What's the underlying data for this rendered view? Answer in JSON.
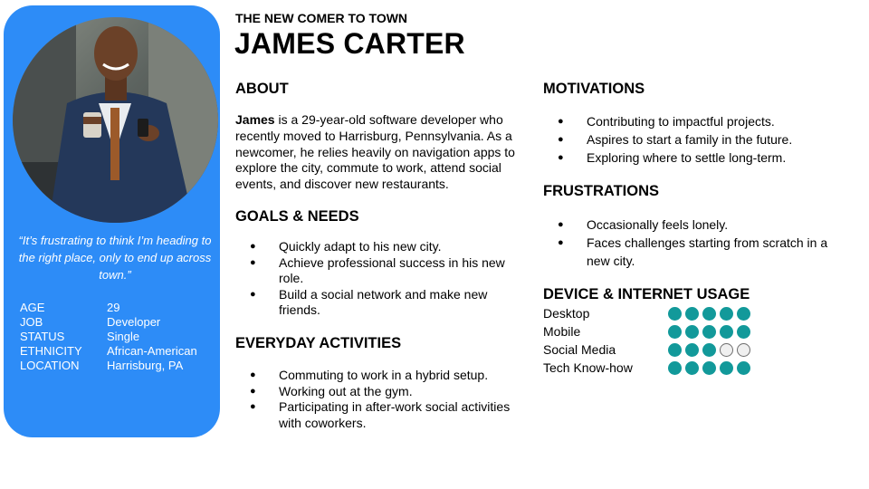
{
  "header": {
    "subtitle": "THE NEW COMER TO TOWN",
    "name": "JAMES CARTER"
  },
  "profile": {
    "photo": "person-photo",
    "quote": "“It’s frustrating to think I’m heading to the right place, only to end up across town.”",
    "facts": [
      {
        "label": "AGE",
        "value": "29"
      },
      {
        "label": "JOB",
        "value": "Developer"
      },
      {
        "label": "STATUS",
        "value": "Single"
      },
      {
        "label": "ETHNICITY",
        "value": "African-American"
      },
      {
        "label": "LOCATION",
        "value": "Harrisburg, PA"
      }
    ],
    "card_color": "#2d8cf7"
  },
  "about": {
    "heading": "ABOUT",
    "name_bold": "James",
    "text": " is a 29-year-old software developer who recently moved to Harrisburg, Pennsylvania. As a newcomer, he relies heavily on navigation apps to explore the city, commute to work, attend social events, and discover new restaurants."
  },
  "goals": {
    "heading": "GOALS & NEEDS",
    "items": [
      "Quickly adapt to his new city.",
      "Achieve professional success in his new role.",
      "Build a social network and make new friends."
    ]
  },
  "activities": {
    "heading": "EVERYDAY ACTIVITIES",
    "items": [
      "Commuting to work in a hybrid setup.",
      "Working out at the gym.",
      "Participating in after-work social activities with coworkers."
    ]
  },
  "motivations": {
    "heading": "MOTIVATIONS",
    "items": [
      "Contributing to impactful projects.",
      "Aspires to start a family in the future.",
      "Exploring where to settle long-term."
    ]
  },
  "frustrations": {
    "heading": "FRUSTRATIONS",
    "items": [
      "Occasionally feels lonely.",
      "Faces challenges starting from scratch in a new city."
    ]
  },
  "usage": {
    "heading": "DEVICE & INTERNET USAGE",
    "max": 5,
    "active_color": "#12999a",
    "rows": [
      {
        "label": "Desktop",
        "level": 5
      },
      {
        "label": "Mobile",
        "level": 5
      },
      {
        "label": "Social Media",
        "level": 3
      },
      {
        "label": "Tech Know-how",
        "level": 5
      }
    ]
  }
}
